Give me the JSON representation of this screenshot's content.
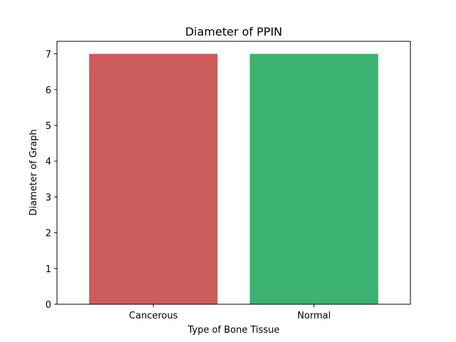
{
  "chart_data": {
    "type": "bar",
    "title": "Diameter of PPIN",
    "xlabel": "Type of Bone Tissue",
    "ylabel": "Diameter of Graph",
    "categories": [
      "Cancerous",
      "Normal"
    ],
    "values": [
      7,
      7
    ],
    "colors": [
      "#cd5c5c",
      "#3cb371"
    ],
    "ylim": [
      0,
      7.35
    ],
    "yticks": [
      0,
      1,
      2,
      3,
      4,
      5,
      6,
      7
    ],
    "grid": false,
    "legend": "none"
  }
}
